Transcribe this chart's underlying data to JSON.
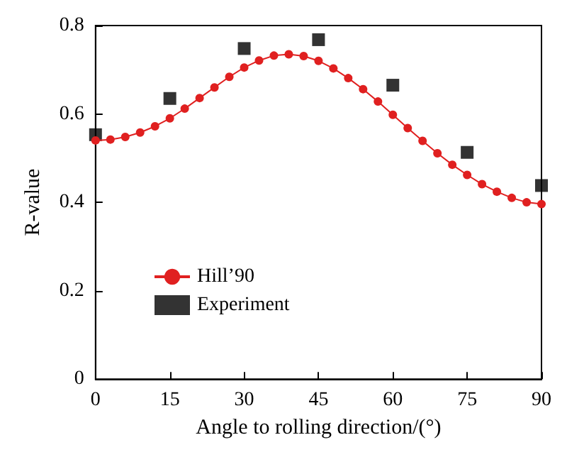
{
  "chart_data": {
    "type": "line",
    "xlabel": "Angle to rolling direction/(°)",
    "ylabel": "R-value",
    "xlim": [
      0,
      90
    ],
    "xticks": [
      0,
      15,
      30,
      45,
      60,
      75,
      90
    ],
    "ylim": [
      0,
      0.8
    ],
    "yticks": [
      0,
      0.2,
      0.4,
      0.6,
      0.8
    ],
    "grid": false,
    "legend": "left",
    "series": [
      {
        "name": "Hill’90",
        "marker": "circle",
        "color": "#e02020",
        "x": [
          0,
          3,
          6,
          9,
          12,
          15,
          18,
          21,
          24,
          27,
          30,
          33,
          36,
          39,
          42,
          45,
          48,
          51,
          54,
          57,
          60,
          63,
          66,
          69,
          72,
          75,
          78,
          81,
          84,
          87,
          90
        ],
        "values": [
          0.54,
          0.542,
          0.548,
          0.558,
          0.572,
          0.59,
          0.612,
          0.636,
          0.66,
          0.684,
          0.705,
          0.721,
          0.732,
          0.735,
          0.731,
          0.72,
          0.703,
          0.681,
          0.656,
          0.628,
          0.598,
          0.568,
          0.539,
          0.511,
          0.485,
          0.462,
          0.441,
          0.424,
          0.41,
          0.4,
          0.396
        ]
      },
      {
        "name": "Experiment",
        "type": "scatter",
        "marker": "square",
        "color": "#000000",
        "x": [
          0,
          15,
          30,
          45,
          60,
          75,
          90
        ],
        "values": [
          0.553,
          0.635,
          0.748,
          0.768,
          0.665,
          0.513,
          0.438
        ]
      }
    ]
  }
}
